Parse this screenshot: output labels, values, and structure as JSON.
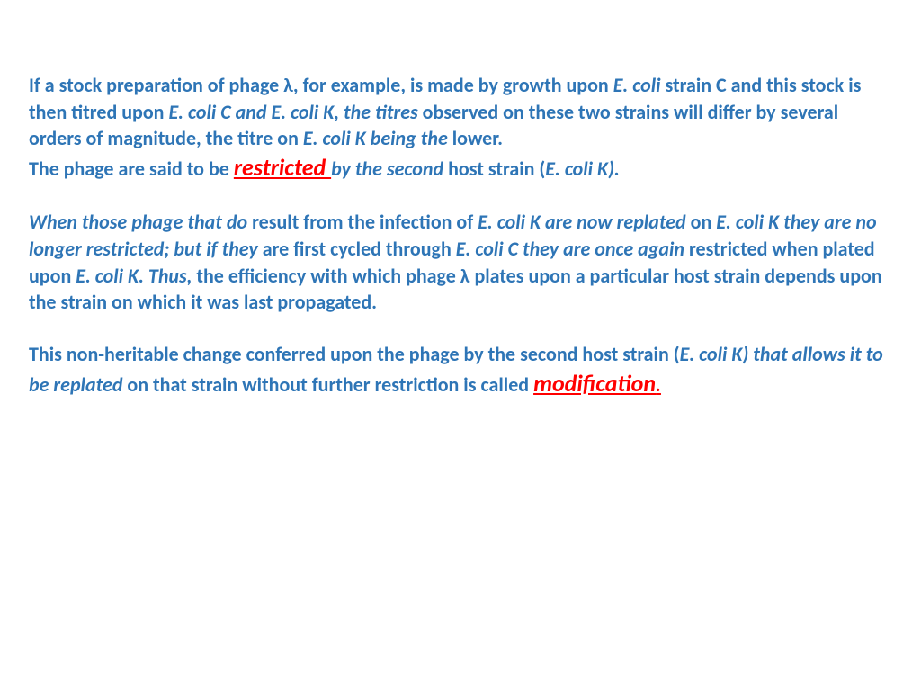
{
  "slide": {
    "text_color": "#2e75b6",
    "highlight_color": "#ff0000",
    "background_color": "#ffffff",
    "font_size_body": 22,
    "font_size_highlight": 26,
    "font_weight": "bold",
    "line_height": 1.35,
    "p1": {
      "s1": "If a stock preparation of phage λ, for example, is made by growth upon ",
      "s2": "E. coli ",
      "s3": "strain C and this stock is then titred upon ",
      "s4": "E. coli C and E. coli K, the titres ",
      "s5": "observed on these two strains will differ by several orders of magnitude, the titre on ",
      "s6": "E. coli K being the ",
      "s7": "lower."
    },
    "p2": {
      "s1": "The phage are said to be ",
      "s2": "restricted ",
      "s3": "by the second ",
      "s4": "host strain (",
      "s5": "E. coli K)."
    },
    "p3": {
      "s1": "When those phage that do ",
      "s2": "result from the infection of ",
      "s3": "E. coli K are now replated ",
      "s4": "on ",
      "s5": "E. coli K they are no longer restricted; but if they ",
      "s6": "are first cycled through ",
      "s7": "E. coli C they are once again ",
      "s8": "restricted when plated upon ",
      "s9": "E. coli K. Thus, ",
      "s10": "the efficiency with which phage λ plates upon a particular host strain depends upon the strain on which it was last propagated."
    },
    "p4": {
      "s1": "This non-heritable change conferred upon the phage by the second host strain (",
      "s2": "E. coli K) that allows it to be replated ",
      "s3": "on that strain without further restriction is called ",
      "s4": "modification",
      "s5": "."
    }
  }
}
